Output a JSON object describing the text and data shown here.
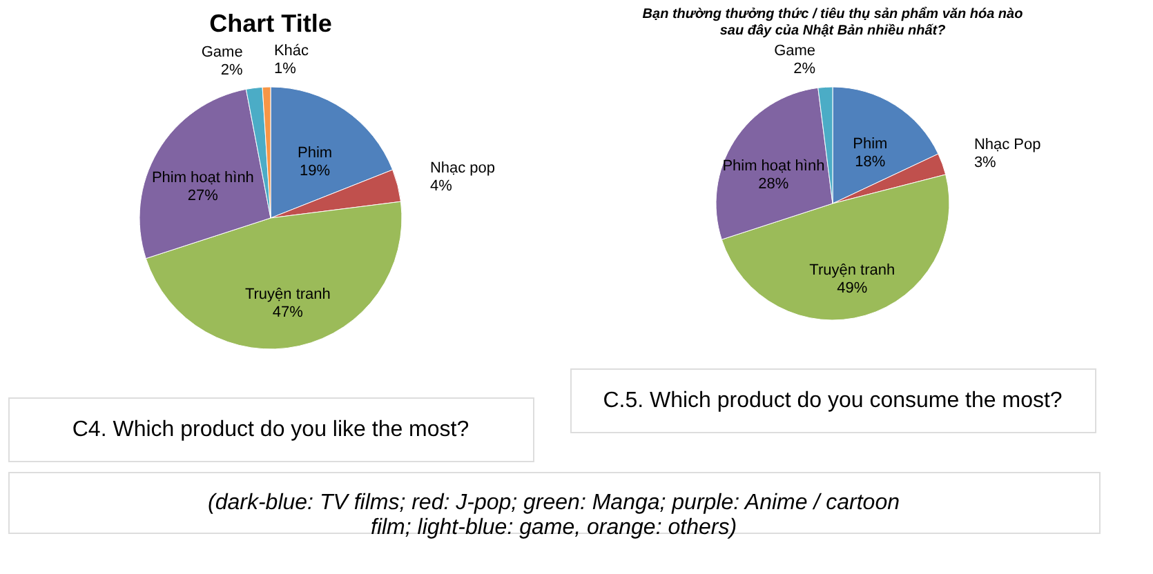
{
  "chart_data": [
    {
      "type": "pie",
      "title": "Chart Title",
      "categories": [
        "Phim",
        "Nhạc pop",
        "Truyện tranh",
        "Phim hoạt hình",
        "Game",
        "Khác"
      ],
      "values": [
        19,
        4,
        47,
        27,
        2,
        1
      ],
      "value_labels": [
        "19%",
        "4%",
        "47%",
        "27%",
        "2%",
        "1%"
      ],
      "colors": [
        "#4f81bd",
        "#c0504d",
        "#9bbb59",
        "#8064a2",
        "#4bacc6",
        "#f79646"
      ],
      "legend": false,
      "annotations": [
        "C4. Which product do you like the most?"
      ]
    },
    {
      "type": "pie",
      "title": "Bạn thường thưởng thức / tiêu thụ sản phẩm văn hóa nào sau đây của Nhật Bản nhiều nhất?",
      "categories": [
        "Phim",
        "Nhạc Pop",
        "Truyện tranh",
        "Phim hoạt hình",
        "Game"
      ],
      "values": [
        18,
        3,
        49,
        28,
        2
      ],
      "value_labels": [
        "18%",
        "3%",
        "49%",
        "28%",
        "2%"
      ],
      "colors": [
        "#4f81bd",
        "#c0504d",
        "#9bbb59",
        "#8064a2",
        "#4bacc6"
      ],
      "legend": false,
      "annotations": [
        "C.5. Which product do you consume the most?"
      ]
    },
    {
      "type": "other",
      "annotations": [
        "(dark-blue: TV films; red: J-pop; green: Manga; purple: Anime / cartoon film; light-blue: game, orange: others)"
      ]
    }
  ]
}
